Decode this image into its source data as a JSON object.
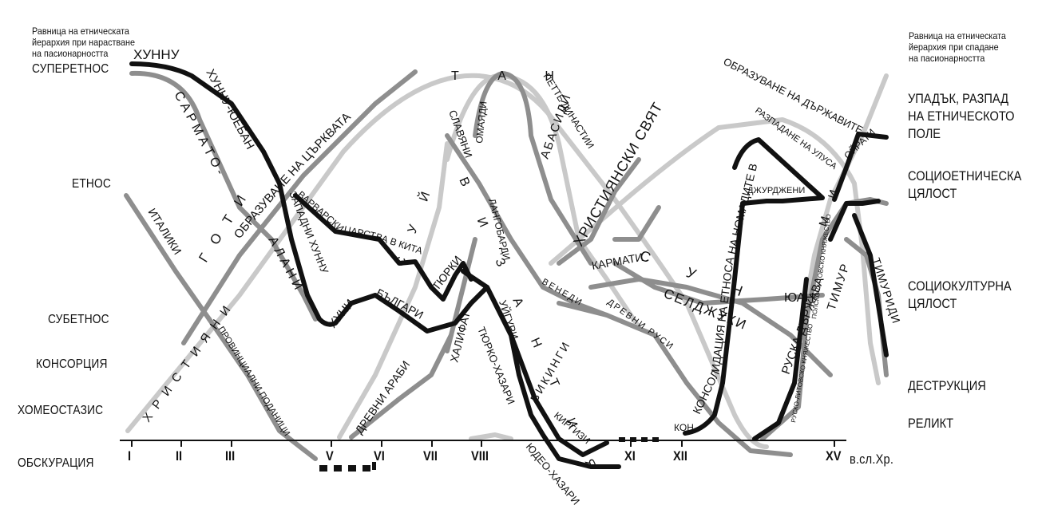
{
  "notes": {
    "growth": [
      "Равница на етническата",
      "йерархия при нарастване",
      "на пасионарността"
    ],
    "decline": [
      "Равница на етническата",
      "йерархия при спадане",
      "на пасионарността"
    ]
  },
  "levels_left": [
    "СУПЕРЕТНОС",
    "ЕТНОС",
    "СУБЕТНОС",
    "КОНСОРЦИЯ",
    "ХОМЕОСТАЗИС",
    "ОБСКУРАЦИЯ"
  ],
  "levels_right": [
    [
      "УПАДЪК, РАЗПАД",
      "НА ЕТНИЧЕСКОТО",
      "ПОЛЕ"
    ],
    [
      "СОЦИОЕТНИЧЕСКА",
      "ЦЯЛОСТ"
    ],
    [
      "СОЦИОКУЛТУРНА",
      "ЦЯЛОСТ"
    ],
    [
      "ДЕСТРУКЦИЯ"
    ],
    [
      "РЕЛИКТ"
    ]
  ],
  "centuries": [
    "I",
    "II",
    "III",
    "V",
    "VI",
    "VII",
    "VIII",
    "XI",
    "XII",
    "XV"
  ],
  "era_label": "в.сл.Хр.",
  "curve_labels": {
    "hunnu": "ХУННУ",
    "hunnu_yueban": "ХУННУ-ЮЕБАН",
    "sarmato": "С А Р М А Т О -",
    "alani": "А Л А Н И",
    "goti": "Г О Т И",
    "zapadni_hunnu": "ЗАПАДНИ ХУННУ",
    "huni": "ХУНИ",
    "bulgari": "БЪЛГАРИ",
    "varvarski": "ВАРВАРСКИ ЦАРСТВА В КИТАЙ",
    "tyurki": "ТЮРКИ",
    "uyguri": "УЙГУРИ",
    "tyurko_hazari": "ТЮРКО-ХАЗАРИ",
    "yudeo_hazari": "ЮДЕО-ХАЗАРИ",
    "kirgizi": "КИРГИЗИ",
    "italiki": "ИТАЛИКИ",
    "provintsialni": "ПРОВИНЦИАЛНИ ПОДАНИЦИ",
    "hristiyani": "Х Р И С Т И Я Н И",
    "tsarkvata": "ОБРАЗУВАНЕ НА ЦЪРКВАТА",
    "suyi": "С У Й",
    "tan": "Т А Н",
    "slavyani": "СЛАВЯНИ",
    "vizantiya": "В И З А Н Т И Я",
    "langobardi": "ЛАНГОБАРДИ",
    "omayadi": "ОМАЯДИ",
    "drevni_arabi": "ДРЕВНИ АРАБИ",
    "halifat": "ХАЛИФАТ",
    "abasidi": "АБАСИДИ",
    "pette": "ПЕТТЕ ДИНАСТИИ",
    "hristiyanski_svyat": "ХРИСТИЯНСКИ СВЯТ",
    "darzhavite": "ОБРАЗУВАНЕ НА ДЪРЖАВИТЕ",
    "veneti": "ВЕНЕДИ",
    "karmati": "КАРМАТИ",
    "vikingi": "ВИКИНГИ",
    "drevni_rusi": "ДРЕВНИ РУСИ",
    "sun": "С У Н",
    "seldzhuki": "СЕЛДЖУКИ",
    "kon": "КОН",
    "konsolidatsiya": "КОНСОЛИДАЦИЯ НА ЕТНОСА НА НОМАДИТЕ В МОНГОЛИТЕ",
    "dzhurdzheni": "ДЖУРДЖЕНИ",
    "razpadane": "РАЗПАДАНЕ НА УЛУСА",
    "yuan": "ЮАН",
    "ruska": "РУСКА ДЪРЖАВА",
    "mi": "М И",
    "oirati": "ОЙРАТИ",
    "timur": "ТИМУР",
    "timuridi": "ТИМУРИДИ",
    "litovsko": "РУСКО-ЛИТОВСКО КНЯЖЕСТВО",
    "polsko": "ПОЛСКО-ЛИТОВСКО КНЯЖЕСТВО"
  }
}
